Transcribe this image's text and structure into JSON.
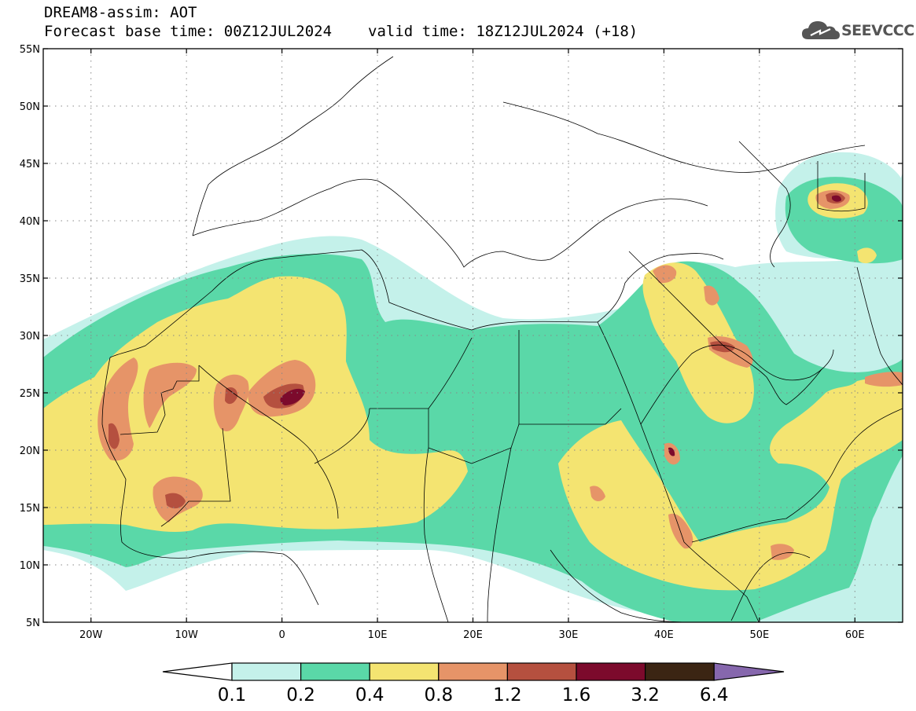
{
  "header": {
    "title": "DREAM8-assim: AOT",
    "base_time": "Forecast base time: 00Z12JUL2024",
    "valid_time": "valid time: 18Z12JUL2024 (+18)"
  },
  "logo": {
    "text": "SEEVCCC",
    "icon": "cloud-icon"
  },
  "map": {
    "lat_labels": [
      "55N",
      "50N",
      "45N",
      "40N",
      "35N",
      "30N",
      "25N",
      "20N",
      "15N",
      "10N",
      "5N"
    ],
    "lon_labels": [
      "20W",
      "10W",
      "0",
      "10E",
      "20E",
      "30E",
      "40E",
      "50E",
      "60E"
    ],
    "lat_range": [
      5,
      55
    ],
    "lon_range": [
      -25,
      65
    ],
    "grid": "dotted"
  },
  "legend": {
    "labels": [
      "0.1",
      "0.2",
      "0.4",
      "0.8",
      "1.2",
      "1.6",
      "3.2",
      "6.4"
    ],
    "colors": [
      "#ffffff",
      "#c4f1ea",
      "#5ad8a8",
      "#f4e471",
      "#e69468",
      "#b5503f",
      "#7c0a2c",
      "#3b2513",
      "#8667ad"
    ]
  }
}
